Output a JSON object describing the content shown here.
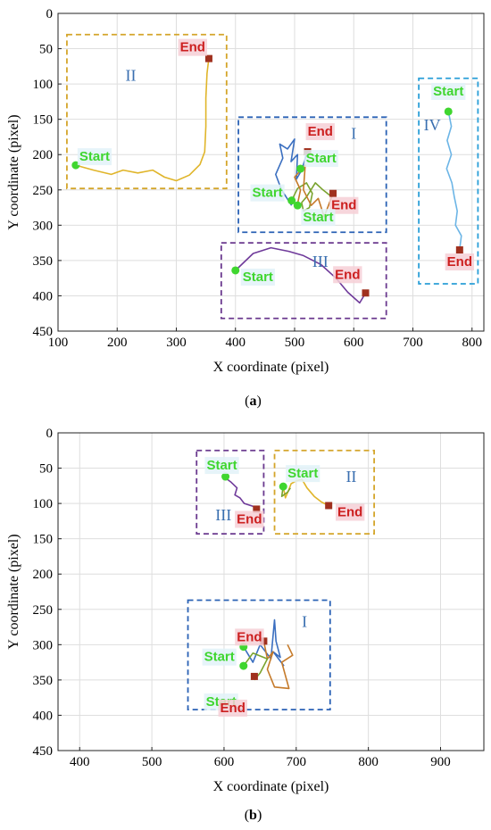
{
  "colors": {
    "start_marker": "#3fd62f",
    "start_text": "#3fd62f",
    "end_marker": "#a0301e",
    "end_text": "#cc1f1f",
    "end_bg": "#f6cfd6",
    "start_bg": "#e2f2f8",
    "grid": "#dedede",
    "roman_text": "#3a6fb0"
  },
  "chart_data": [
    {
      "type": "line",
      "panel_caption": "(a)",
      "xlabel": "X coordinate (pixel)",
      "ylabel": "Y coordinate (pixel)",
      "xlim": [
        100,
        820
      ],
      "ylim": [
        0,
        450
      ],
      "y_reversed": true,
      "grid": true,
      "xticks": [
        100,
        200,
        300,
        400,
        500,
        600,
        700,
        800
      ],
      "yticks": [
        0,
        50,
        100,
        150,
        200,
        250,
        300,
        350,
        400,
        450
      ],
      "regions": [
        {
          "label": "II",
          "color": "#d4a52a",
          "x": [
            115,
            385
          ],
          "y": [
            30,
            248
          ]
        },
        {
          "label": "I",
          "color": "#2b62b5",
          "x": [
            405,
            655
          ],
          "y": [
            147,
            310
          ]
        },
        {
          "label": "IV",
          "color": "#2a9fd8",
          "x": [
            710,
            810
          ],
          "y": [
            92,
            383
          ]
        },
        {
          "label": "III",
          "color": "#6b3a8f",
          "x": [
            376,
            655
          ],
          "y": [
            325,
            432
          ]
        }
      ],
      "series": [
        {
          "color": "#e0b52a",
          "points": [
            [
              130,
              215
            ],
            [
              160,
              222
            ],
            [
              190,
              228
            ],
            [
              210,
              222
            ],
            [
              235,
              226
            ],
            [
              260,
              222
            ],
            [
              280,
              232
            ],
            [
              300,
              237
            ],
            [
              322,
              229
            ],
            [
              340,
              214
            ],
            [
              348,
              196
            ],
            [
              350,
              160
            ],
            [
              350,
              120
            ],
            [
              352,
              85
            ],
            [
              355,
              64
            ]
          ]
        },
        {
          "color": "#3b6fc0",
          "points": [
            [
              495,
              272
            ],
            [
              478,
              250
            ],
            [
              468,
              228
            ],
            [
              480,
              205
            ],
            [
              475,
              185
            ],
            [
              488,
              192
            ],
            [
              500,
              178
            ],
            [
              494,
              210
            ],
            [
              505,
              200
            ],
            [
              503,
              235
            ],
            [
              512,
              222
            ],
            [
              522,
              195
            ]
          ]
        },
        {
          "color": "#7aa32f",
          "points": [
            [
              495,
              265
            ],
            [
              505,
              248
            ],
            [
              520,
              240
            ],
            [
              530,
              255
            ],
            [
              525,
              275
            ],
            [
              515,
              280
            ],
            [
              512,
              268
            ],
            [
              520,
              260
            ],
            [
              535,
              240
            ],
            [
              548,
              250
            ],
            [
              560,
              258
            ]
          ]
        },
        {
          "color": "#c57a2a",
          "points": [
            [
              505,
              270
            ],
            [
              510,
              250
            ],
            [
              500,
              232
            ],
            [
              518,
              215
            ],
            [
              515,
              250
            ],
            [
              528,
              272
            ],
            [
              540,
              262
            ],
            [
              550,
              288
            ],
            [
              565,
              255
            ]
          ]
        },
        {
          "color": "#6f3a9a",
          "points": [
            [
              400,
              364
            ],
            [
              430,
              340
            ],
            [
              460,
              332
            ],
            [
              490,
              337
            ],
            [
              515,
              343
            ],
            [
              545,
              356
            ],
            [
              570,
              375
            ],
            [
              590,
              395
            ],
            [
              610,
              410
            ],
            [
              620,
              396
            ]
          ]
        },
        {
          "color": "#6cb5e6",
          "points": [
            [
              760,
              139
            ],
            [
              765,
              160
            ],
            [
              758,
              180
            ],
            [
              765,
              200
            ],
            [
              757,
              220
            ],
            [
              766,
              240
            ],
            [
              770,
              260
            ],
            [
              775,
              280
            ],
            [
              772,
              300
            ],
            [
              782,
              315
            ],
            [
              779,
              335
            ]
          ]
        }
      ],
      "annotations": [
        {
          "text": "Start",
          "kind": "start",
          "x": 130,
          "y": 215
        },
        {
          "text": "End",
          "kind": "end",
          "x": 355,
          "y": 64
        },
        {
          "text": "Start",
          "kind": "start",
          "x": 510,
          "y": 220
        },
        {
          "text": "End",
          "kind": "end",
          "x": 522,
          "y": 196
        },
        {
          "text": "Start",
          "kind": "start",
          "x": 495,
          "y": 265
        },
        {
          "text": "End",
          "kind": "end",
          "x": 565,
          "y": 255
        },
        {
          "text": "Start",
          "kind": "start",
          "x": 505,
          "y": 272
        },
        {
          "text": "Start",
          "kind": "start",
          "x": 400,
          "y": 364
        },
        {
          "text": "End",
          "kind": "end",
          "x": 620,
          "y": 396
        },
        {
          "text": "Start",
          "kind": "start",
          "x": 760,
          "y": 139
        },
        {
          "text": "End",
          "kind": "end",
          "x": 779,
          "y": 335
        }
      ]
    },
    {
      "type": "line",
      "panel_caption": "(b)",
      "xlabel": "X coordinate (pixel)",
      "ylabel": "Y coordinate (pixel)",
      "xlim": [
        370,
        960
      ],
      "ylim": [
        0,
        450
      ],
      "y_reversed": true,
      "grid": true,
      "xticks": [
        400,
        500,
        600,
        700,
        800,
        900
      ],
      "yticks": [
        0,
        50,
        100,
        150,
        200,
        250,
        300,
        350,
        400,
        450
      ],
      "regions": [
        {
          "label": "III",
          "color": "#6b3a8f",
          "x": [
            562,
            655
          ],
          "y": [
            25,
            143
          ]
        },
        {
          "label": "II",
          "color": "#d4a52a",
          "x": [
            670,
            808
          ],
          "y": [
            25,
            143
          ]
        },
        {
          "label": "I",
          "color": "#2b62b5",
          "x": [
            550,
            747
          ],
          "y": [
            237,
            392
          ]
        }
      ],
      "series": [
        {
          "color": "#6f3a9a",
          "points": [
            [
              602,
              64
            ],
            [
              610,
              70
            ],
            [
              618,
              78
            ],
            [
              615,
              88
            ],
            [
              622,
              92
            ],
            [
              628,
              100
            ],
            [
              640,
              104
            ],
            [
              645,
              108
            ]
          ]
        },
        {
          "color": "#e0b52a",
          "points": [
            [
              682,
              76
            ],
            [
              685,
              92
            ],
            [
              690,
              80
            ],
            [
              693,
              72
            ],
            [
              700,
              68
            ],
            [
              708,
              66
            ],
            [
              715,
              78
            ],
            [
              725,
              90
            ],
            [
              735,
              98
            ],
            [
              745,
              103
            ]
          ]
        },
        {
          "color": "#7aa32f",
          "points": [
            [
              682,
              76
            ],
            [
              680,
              90
            ],
            [
              688,
              84
            ],
            [
              692,
              78
            ]
          ]
        },
        {
          "color": "#3b6fc0",
          "points": [
            [
              627,
              303
            ],
            [
              640,
              325
            ],
            [
              650,
              300
            ],
            [
              665,
              320
            ],
            [
              670,
              265
            ],
            [
              672,
              295
            ],
            [
              678,
              318
            ],
            [
              668,
              310
            ],
            [
              683,
              330
            ]
          ]
        },
        {
          "color": "#c57a2a",
          "points": [
            [
              655,
              295
            ],
            [
              660,
              320
            ],
            [
              668,
              310
            ],
            [
              660,
              335
            ],
            [
              670,
              360
            ],
            [
              690,
              362
            ],
            [
              680,
              325
            ],
            [
              695,
              315
            ],
            [
              688,
              300
            ]
          ]
        },
        {
          "color": "#7aa32f",
          "points": [
            [
              627,
              330
            ],
            [
              640,
              312
            ],
            [
              660,
              320
            ],
            [
              650,
              340
            ],
            [
              642,
              350
            ]
          ]
        }
      ],
      "annotations": [
        {
          "text": "Start",
          "kind": "start",
          "x": 602,
          "y": 62
        },
        {
          "text": "End",
          "kind": "end",
          "x": 645,
          "y": 108
        },
        {
          "text": "Start",
          "kind": "start",
          "x": 682,
          "y": 76
        },
        {
          "text": "End",
          "kind": "end",
          "x": 745,
          "y": 103
        },
        {
          "text": "End",
          "kind": "end",
          "x": 655,
          "y": 295
        },
        {
          "text": "Start",
          "kind": "start",
          "x": 627,
          "y": 303
        },
        {
          "text": "Start",
          "kind": "start",
          "x": 627,
          "y": 330
        },
        {
          "text": "End",
          "kind": "end",
          "x": 642,
          "y": 345
        }
      ]
    }
  ]
}
